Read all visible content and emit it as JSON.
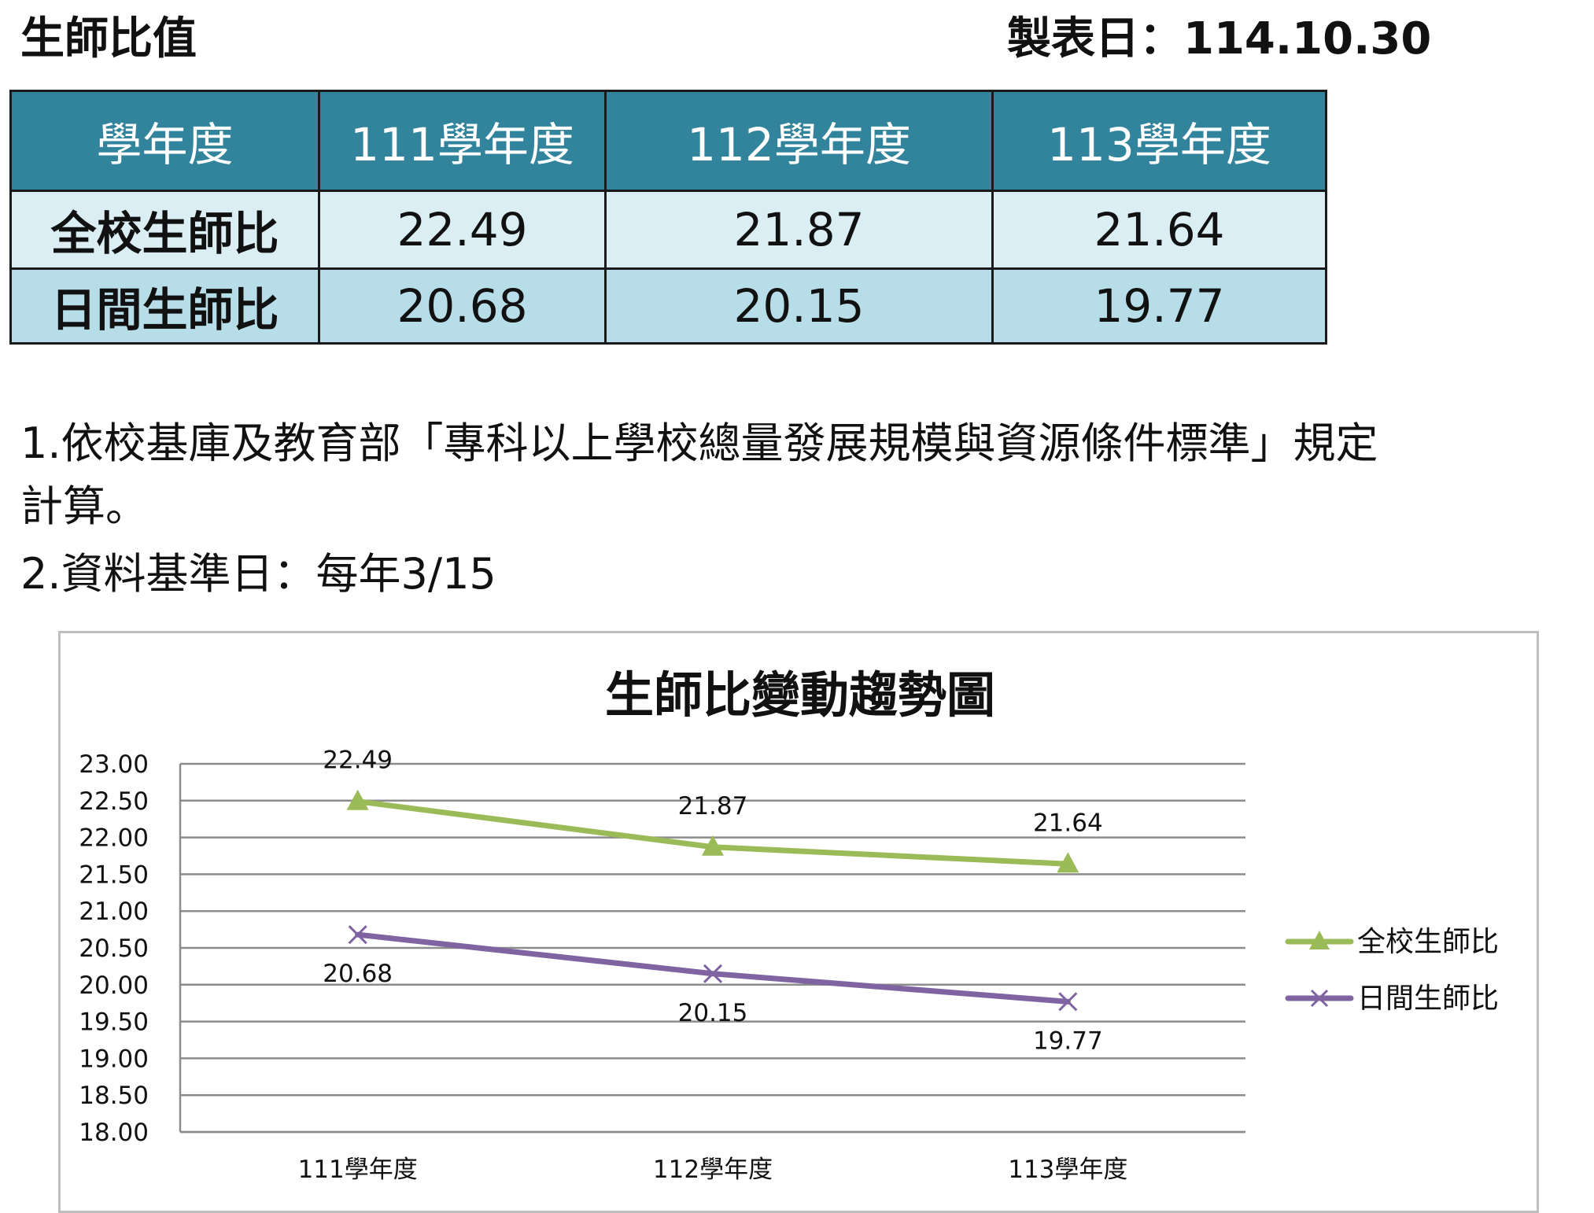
{
  "header": {
    "title": "生師比值",
    "made_date": "製表日：114.10.30"
  },
  "table": {
    "header": [
      "學年度",
      "111學年度",
      "112學年度",
      "113學年度"
    ],
    "rows": [
      {
        "label": "全校生師比",
        "values": [
          "22.49",
          "21.87",
          "21.64"
        ]
      },
      {
        "label": "日間生師比",
        "values": [
          "20.68",
          "20.15",
          "19.77"
        ]
      }
    ]
  },
  "notes": {
    "line1": "1.依校基庫及教育部「專科以上學校總量發展規模與資源條件標準」規定",
    "line2": "計算。",
    "line3": "2.資料基準日：每年3/15"
  },
  "chart_data": {
    "type": "line",
    "title": "生師比變動趨勢圖",
    "categories": [
      "111學年度",
      "112學年度",
      "113學年度"
    ],
    "series": [
      {
        "name": "全校生師比",
        "values": [
          22.49,
          21.87,
          21.64
        ],
        "color": "#9bbb59",
        "marker": "triangle"
      },
      {
        "name": "日間生師比",
        "values": [
          20.68,
          20.15,
          19.77
        ],
        "color": "#8064a2",
        "marker": "x"
      }
    ],
    "ylim": [
      18,
      23
    ],
    "ytick_step": 0.5,
    "grid": true,
    "legend": "right",
    "data_labels": true
  }
}
